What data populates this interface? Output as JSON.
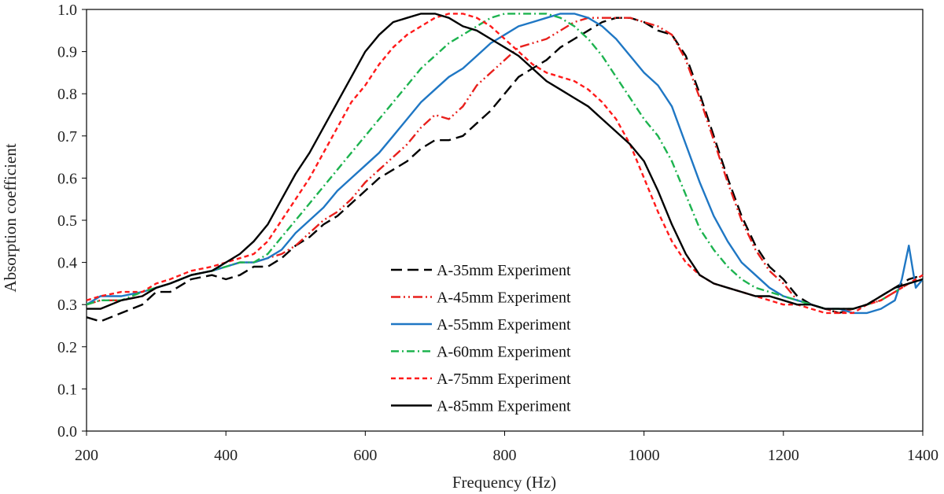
{
  "chart_data": {
    "type": "line",
    "title": "",
    "xlabel": "Frequency  (Hz)",
    "ylabel": "Absorption  coefficient",
    "xlim": [
      200,
      1400
    ],
    "ylim": [
      0.0,
      1.0
    ],
    "xticks": [
      200,
      400,
      600,
      800,
      1000,
      1200,
      1400
    ],
    "xtick_labels": [
      "200",
      "400",
      "600",
      "800",
      "1000",
      "1200",
      "1400"
    ],
    "yticks": [
      0.0,
      0.1,
      0.2,
      0.3,
      0.4,
      0.5,
      0.6,
      0.7,
      0.8,
      0.9,
      1.0
    ],
    "ytick_labels": [
      "0.0",
      "0.1",
      "0.2",
      "0.3",
      "0.4",
      "0.5",
      "0.6",
      "0.7",
      "0.8",
      "0.9",
      "1.0"
    ],
    "grid": false,
    "legend_position": "center-bottom",
    "series": [
      {
        "name": "A-35mm Experiment",
        "color": "#000000",
        "dash": "long-dash",
        "x": [
          200,
          220,
          250,
          280,
          300,
          320,
          350,
          380,
          400,
          420,
          440,
          460,
          480,
          500,
          520,
          540,
          560,
          580,
          600,
          620,
          640,
          660,
          680,
          700,
          720,
          740,
          760,
          780,
          800,
          820,
          840,
          860,
          880,
          900,
          920,
          940,
          960,
          980,
          1000,
          1020,
          1040,
          1060,
          1080,
          1100,
          1120,
          1140,
          1160,
          1180,
          1200,
          1220,
          1240,
          1260,
          1280,
          1300,
          1320,
          1340,
          1360,
          1380,
          1400
        ],
        "y": [
          0.27,
          0.26,
          0.28,
          0.3,
          0.33,
          0.33,
          0.36,
          0.37,
          0.36,
          0.37,
          0.39,
          0.39,
          0.41,
          0.44,
          0.46,
          0.49,
          0.51,
          0.54,
          0.57,
          0.6,
          0.62,
          0.64,
          0.67,
          0.69,
          0.69,
          0.7,
          0.73,
          0.76,
          0.8,
          0.84,
          0.86,
          0.88,
          0.91,
          0.93,
          0.95,
          0.97,
          0.98,
          0.98,
          0.97,
          0.95,
          0.94,
          0.89,
          0.8,
          0.7,
          0.6,
          0.51,
          0.44,
          0.39,
          0.36,
          0.32,
          0.3,
          0.29,
          0.28,
          0.29,
          0.3,
          0.32,
          0.34,
          0.36,
          0.37
        ]
      },
      {
        "name": "A-45mm Experiment",
        "color": "#e8201c",
        "dash": "dash-dot-dot",
        "x": [
          200,
          220,
          250,
          280,
          300,
          320,
          350,
          380,
          400,
          420,
          440,
          460,
          480,
          500,
          520,
          540,
          560,
          580,
          600,
          620,
          640,
          660,
          680,
          700,
          720,
          740,
          760,
          780,
          800,
          820,
          840,
          860,
          880,
          900,
          920,
          940,
          960,
          980,
          1000,
          1020,
          1040,
          1060,
          1080,
          1100,
          1120,
          1140,
          1160,
          1180,
          1200,
          1220,
          1240,
          1260,
          1280,
          1300,
          1320,
          1340,
          1360,
          1380,
          1400
        ],
        "y": [
          0.3,
          0.31,
          0.31,
          0.32,
          0.34,
          0.35,
          0.37,
          0.38,
          0.39,
          0.4,
          0.4,
          0.41,
          0.42,
          0.44,
          0.47,
          0.5,
          0.52,
          0.55,
          0.59,
          0.62,
          0.65,
          0.68,
          0.72,
          0.75,
          0.74,
          0.77,
          0.82,
          0.85,
          0.88,
          0.91,
          0.92,
          0.93,
          0.95,
          0.97,
          0.98,
          0.98,
          0.98,
          0.98,
          0.97,
          0.96,
          0.94,
          0.88,
          0.79,
          0.69,
          0.59,
          0.5,
          0.43,
          0.38,
          0.35,
          0.31,
          0.3,
          0.29,
          0.28,
          0.29,
          0.3,
          0.31,
          0.33,
          0.35,
          0.36
        ]
      },
      {
        "name": "A-55mm Experiment",
        "color": "#1f77c4",
        "dash": "solid",
        "x": [
          200,
          220,
          250,
          280,
          300,
          320,
          350,
          380,
          400,
          420,
          440,
          460,
          480,
          500,
          520,
          540,
          560,
          580,
          600,
          620,
          640,
          660,
          680,
          700,
          720,
          740,
          760,
          780,
          800,
          820,
          840,
          860,
          880,
          900,
          920,
          940,
          960,
          980,
          1000,
          1020,
          1040,
          1060,
          1080,
          1100,
          1120,
          1140,
          1160,
          1180,
          1200,
          1220,
          1240,
          1260,
          1280,
          1300,
          1320,
          1340,
          1360,
          1370,
          1380,
          1390,
          1400
        ],
        "y": [
          0.3,
          0.32,
          0.32,
          0.33,
          0.34,
          0.35,
          0.37,
          0.38,
          0.39,
          0.4,
          0.4,
          0.41,
          0.43,
          0.47,
          0.5,
          0.53,
          0.57,
          0.6,
          0.63,
          0.66,
          0.7,
          0.74,
          0.78,
          0.81,
          0.84,
          0.86,
          0.89,
          0.92,
          0.94,
          0.96,
          0.97,
          0.98,
          0.99,
          0.99,
          0.98,
          0.96,
          0.93,
          0.89,
          0.85,
          0.82,
          0.77,
          0.68,
          0.59,
          0.51,
          0.45,
          0.4,
          0.37,
          0.34,
          0.32,
          0.31,
          0.3,
          0.29,
          0.29,
          0.28,
          0.28,
          0.29,
          0.31,
          0.36,
          0.44,
          0.34,
          0.36
        ]
      },
      {
        "name": "A-60mm Experiment",
        "color": "#1db34f",
        "dash": "dash-dot",
        "x": [
          200,
          220,
          250,
          280,
          300,
          320,
          350,
          380,
          400,
          420,
          440,
          460,
          480,
          500,
          520,
          540,
          560,
          580,
          600,
          620,
          640,
          660,
          680,
          700,
          720,
          740,
          760,
          780,
          800,
          820,
          840,
          860,
          880,
          900,
          920,
          940,
          960,
          980,
          1000,
          1020,
          1040,
          1060,
          1080,
          1100,
          1120,
          1140,
          1160,
          1180,
          1200,
          1220,
          1240,
          1260,
          1280,
          1300,
          1320,
          1340,
          1360,
          1380,
          1400
        ],
        "y": [
          0.3,
          0.31,
          0.31,
          0.33,
          0.34,
          0.35,
          0.37,
          0.38,
          0.39,
          0.4,
          0.4,
          0.42,
          0.46,
          0.5,
          0.54,
          0.58,
          0.62,
          0.66,
          0.7,
          0.74,
          0.78,
          0.82,
          0.86,
          0.89,
          0.92,
          0.94,
          0.96,
          0.98,
          0.99,
          0.99,
          0.99,
          0.99,
          0.98,
          0.96,
          0.93,
          0.89,
          0.84,
          0.79,
          0.74,
          0.7,
          0.64,
          0.56,
          0.48,
          0.43,
          0.39,
          0.36,
          0.34,
          0.33,
          0.32,
          0.31,
          0.3,
          0.29,
          0.29,
          0.29,
          0.3,
          0.31,
          0.33,
          0.35,
          0.36
        ]
      },
      {
        "name": "A-75mm Experiment",
        "color": "#ff1a1a",
        "dash": "short-dash",
        "x": [
          200,
          220,
          250,
          280,
          300,
          320,
          350,
          380,
          400,
          420,
          440,
          460,
          480,
          500,
          520,
          540,
          560,
          580,
          600,
          620,
          640,
          660,
          680,
          700,
          720,
          740,
          760,
          780,
          800,
          820,
          840,
          860,
          880,
          900,
          920,
          940,
          960,
          980,
          1000,
          1020,
          1040,
          1060,
          1080,
          1100,
          1120,
          1140,
          1160,
          1180,
          1200,
          1220,
          1240,
          1260,
          1280,
          1300,
          1320,
          1340,
          1360,
          1380,
          1400
        ],
        "y": [
          0.31,
          0.32,
          0.33,
          0.33,
          0.35,
          0.36,
          0.38,
          0.39,
          0.4,
          0.41,
          0.42,
          0.45,
          0.5,
          0.55,
          0.6,
          0.66,
          0.72,
          0.78,
          0.82,
          0.87,
          0.91,
          0.94,
          0.96,
          0.98,
          0.99,
          0.99,
          0.98,
          0.96,
          0.93,
          0.9,
          0.87,
          0.85,
          0.84,
          0.83,
          0.81,
          0.78,
          0.74,
          0.68,
          0.6,
          0.52,
          0.45,
          0.4,
          0.37,
          0.35,
          0.34,
          0.33,
          0.32,
          0.31,
          0.3,
          0.3,
          0.29,
          0.28,
          0.28,
          0.28,
          0.3,
          0.31,
          0.33,
          0.35,
          0.37
        ]
      },
      {
        "name": "A-85mm Experiment",
        "color": "#000000",
        "dash": "solid",
        "x": [
          200,
          220,
          250,
          280,
          300,
          320,
          350,
          380,
          400,
          420,
          440,
          460,
          480,
          500,
          520,
          540,
          560,
          580,
          600,
          620,
          640,
          660,
          680,
          700,
          720,
          740,
          760,
          780,
          800,
          820,
          840,
          860,
          880,
          900,
          920,
          940,
          960,
          980,
          1000,
          1020,
          1040,
          1060,
          1080,
          1100,
          1120,
          1140,
          1160,
          1180,
          1200,
          1220,
          1240,
          1260,
          1280,
          1300,
          1320,
          1340,
          1360,
          1380,
          1400
        ],
        "y": [
          0.29,
          0.29,
          0.31,
          0.32,
          0.34,
          0.35,
          0.37,
          0.38,
          0.4,
          0.42,
          0.45,
          0.49,
          0.55,
          0.61,
          0.66,
          0.72,
          0.78,
          0.84,
          0.9,
          0.94,
          0.97,
          0.98,
          0.99,
          0.99,
          0.98,
          0.96,
          0.95,
          0.93,
          0.91,
          0.89,
          0.86,
          0.83,
          0.81,
          0.79,
          0.77,
          0.74,
          0.71,
          0.68,
          0.64,
          0.57,
          0.49,
          0.42,
          0.37,
          0.35,
          0.34,
          0.33,
          0.32,
          0.32,
          0.31,
          0.3,
          0.3,
          0.29,
          0.29,
          0.29,
          0.3,
          0.32,
          0.34,
          0.35,
          0.36
        ]
      }
    ]
  }
}
